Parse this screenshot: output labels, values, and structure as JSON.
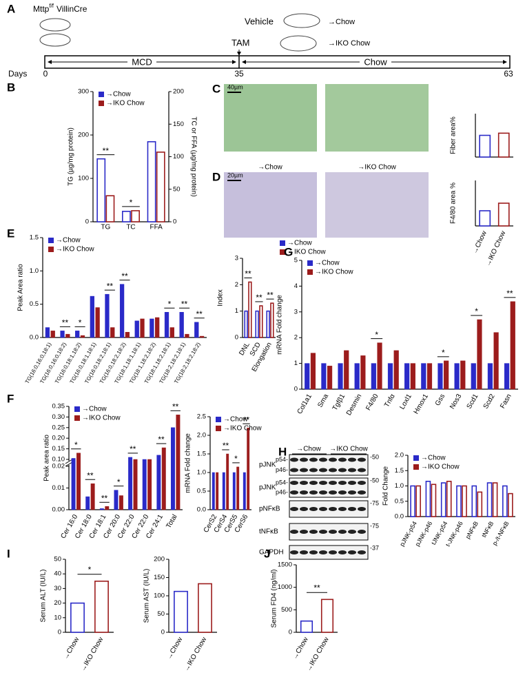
{
  "timeline": {
    "panel": "A",
    "strain": [
      "Mttp",
      "f/f",
      "VillinCre"
    ],
    "groups": [
      {
        "treatment": "Vehicle",
        "outcome": "→Chow"
      },
      {
        "treatment": "TAM",
        "outcome": "→IKO Chow"
      }
    ],
    "phases": [
      "MCD",
      "Chow"
    ],
    "days_label": "Days",
    "days": [
      "0",
      "35",
      "63"
    ]
  },
  "histology": {
    "panels": [
      "C",
      "D"
    ],
    "scale_bars": [
      "40µm",
      "20µm"
    ],
    "columns": [
      "→Chow",
      "→IKO Chow"
    ]
  },
  "blot": {
    "panel": "H",
    "groups": [
      "→Chow",
      "→IKO Chow"
    ],
    "rows": [
      {
        "label": "pJNK",
        "bands": [
          "p54-",
          "p46-"
        ],
        "marker": "-50"
      },
      {
        "label": "pJNK",
        "bands": [
          "p54-",
          "p46-"
        ],
        "marker": "-50"
      },
      {
        "label": "pNFκB",
        "marker": "-75"
      },
      {
        "label": "tNFκB",
        "marker": "-75"
      },
      {
        "label": "GAPDH",
        "marker": "-37"
      }
    ]
  },
  "chart_data": [
    {
      "type": "bar",
      "panel": "B",
      "ylabel": "TG (µg/mg protein)",
      "y2label": "TC or FFA (µg/mg protein)",
      "categories": [
        "TG",
        "TC",
        "FFA"
      ],
      "value_axis": [
        "y",
        "y2",
        "y2"
      ],
      "series": [
        {
          "name": "→Chow",
          "color": "#2a2ac8",
          "values": [
            145,
            16,
            123
          ]
        },
        {
          "name": "→IKO Chow",
          "color": "#9c1c1c",
          "values": [
            60,
            17,
            107
          ]
        }
      ],
      "ylim": [
        0,
        300
      ],
      "yticks": [
        0,
        100,
        200,
        300
      ],
      "y2lim": [
        0,
        200
      ],
      "y2ticks": [
        0,
        50,
        100,
        150,
        200
      ],
      "significance": [
        "**",
        "*",
        null
      ],
      "bar_style": "outline",
      "legend": "top-left"
    },
    {
      "type": "bar",
      "ylabel": "Fiber area%",
      "values": [
        2.0,
        2.2
      ],
      "colors": [
        "#2a2ac8",
        "#9c1c1c"
      ],
      "ylim": [
        0,
        4
      ],
      "bar_style": "outline"
    },
    {
      "type": "bar",
      "ylabel": "F4/80 area %",
      "categories": [
        "→Chow",
        "→IKO Chow"
      ],
      "values": [
        1.0,
        1.5
      ],
      "colors": [
        "#2a2ac8",
        "#9c1c1c"
      ],
      "ylim": [
        0,
        3
      ],
      "bar_style": "outline"
    },
    {
      "type": "bar",
      "panel": "E",
      "ylabel": "Peak Area ratio",
      "categories": [
        "TG(16:0,16:0,18:1)",
        "TG(16:0,16:0,18:2)",
        "TG(16:0,18:1,18:2)",
        "TG(16:0,18:1,18:1)",
        "TG(16:0,18:2,18:1)",
        "TG(16:0,18:2,18:2)",
        "TG(18:1,18:1,18:1)",
        "TG(18:1,18:2,18:2)",
        "TG(18:1,18:2,18:1)",
        "TG(18:2,18:2,18:1)",
        "TG(18:2,18:2,18:2)"
      ],
      "series": [
        {
          "name": "→Chow",
          "color": "#2a2ac8",
          "values": [
            0.15,
            0.1,
            0.1,
            0.62,
            0.65,
            0.8,
            0.25,
            0.28,
            0.38,
            0.38,
            0.23
          ]
        },
        {
          "name": "→IKO Chow",
          "color": "#9c1c1c",
          "values": [
            0.1,
            0.05,
            0.03,
            0.45,
            0.15,
            0.08,
            0.28,
            0.3,
            0.15,
            0.05,
            0.02
          ]
        }
      ],
      "ylim": [
        0,
        1.5
      ],
      "yticks": [
        {
          "value": 0,
          "label": "0.0"
        },
        0.5,
        {
          "value": 1,
          "label": "1.0"
        },
        1.5
      ],
      "significance": [
        null,
        "**",
        "*",
        null,
        "**",
        "**",
        null,
        null,
        "*",
        "**",
        "**"
      ],
      "bar_style": "filled",
      "legend": "top-left"
    },
    {
      "type": "bar",
      "ylabel": "Index",
      "categories": [
        "DNL",
        "SCD",
        "Elongation"
      ],
      "series": [
        {
          "name": "→Chow",
          "color": "#2a2ac8",
          "values": [
            1,
            1,
            1
          ]
        },
        {
          "name": "→IKO Chow",
          "color": "#9c1c1c",
          "values": [
            2.1,
            1.2,
            1.3
          ]
        }
      ],
      "ylim": [
        0,
        3
      ],
      "yticks": [
        0,
        1,
        2,
        3
      ],
      "significance": [
        "**",
        "**",
        "**"
      ],
      "bar_style": "outline",
      "legend": "top-right"
    },
    {
      "type": "bar",
      "panel": "G",
      "ylabel": "mRNA Fold change",
      "categories": [
        "Col1a1",
        "Sma",
        "Tgfβ1",
        "Desmin",
        "F4/80",
        "Tnfα",
        "Loxl1",
        "Hmox1",
        "Gss",
        "Nos3",
        "Scd1",
        "Scd2",
        "Fasn"
      ],
      "series": [
        {
          "name": "→Chow",
          "color": "#2a2ac8",
          "values": [
            1,
            1,
            1,
            1,
            1,
            1,
            1,
            1,
            1,
            1,
            1,
            1,
            1
          ]
        },
        {
          "name": "→IKO Chow",
          "color": "#9c1c1c",
          "values": [
            1.4,
            0.9,
            1.5,
            1.3,
            1.8,
            1.5,
            1.0,
            1.0,
            1.1,
            1.1,
            2.7,
            2.2,
            3.4
          ]
        }
      ],
      "ylim": [
        0,
        5
      ],
      "yticks": [
        0,
        1,
        2,
        3,
        4,
        5
      ],
      "significance": [
        null,
        null,
        null,
        null,
        "*",
        null,
        null,
        null,
        "*",
        null,
        "*",
        null,
        "**"
      ],
      "bar_style": "filled",
      "legend": "top-left"
    },
    {
      "type": "bar",
      "panel": "F",
      "ylabel": "Peak area ratio",
      "categories": [
        "Cer 16:0",
        "Cer 18:0",
        "Cer 18:1",
        "Cer 20:0",
        "Cer 22:0",
        "Cer 22:0",
        "Cer 24:1",
        "Total"
      ],
      "series": [
        {
          "name": "→Chow",
          "color": "#2a2ac8",
          "values": [
            0.105,
            0.006,
            0.0005,
            0.009,
            0.11,
            0.1,
            0.12,
            0.25
          ]
        },
        {
          "name": "→IKO Chow",
          "color": "#9c1c1c",
          "values": [
            0.13,
            0.012,
            0.0015,
            0.0065,
            0.1,
            0.1,
            0.155,
            0.31
          ]
        }
      ],
      "ylim": [
        0,
        0.35
      ],
      "ybreak": [
        0.02,
        0.1
      ],
      "yticks": [
        {
          "value": 0,
          "label": "0.00"
        },
        0.01,
        0.02,
        {
          "value": 0.1,
          "label": "0.10"
        },
        0.15,
        {
          "value": 0.2,
          "label": "0.20"
        },
        0.25,
        {
          "value": 0.3,
          "label": "0.30"
        },
        0.35
      ],
      "significance": [
        "*",
        "**",
        "**",
        "*",
        "**",
        null,
        "**",
        "**"
      ],
      "bar_style": "filled",
      "legend": "top-left"
    },
    {
      "type": "bar",
      "ylabel": "mRNA Fold change",
      "categories": [
        "CerS2",
        "CerS4",
        "CerS5",
        "CerS6"
      ],
      "series": [
        {
          "name": "→Chow",
          "color": "#2a2ac8",
          "values": [
            1,
            1,
            1,
            1
          ]
        },
        {
          "name": "→IKO Chow",
          "color": "#9c1c1c",
          "values": [
            1.0,
            1.5,
            1.15,
            2.2
          ]
        }
      ],
      "ylim": [
        0,
        2.5
      ],
      "yticks": [
        {
          "value": 0,
          "label": "0.0"
        },
        0.5,
        {
          "value": 1,
          "label": "1.0"
        },
        1.5,
        {
          "value": 2,
          "label": "2.0"
        },
        2.5
      ],
      "significance": [
        null,
        "**",
        "*",
        "**"
      ],
      "bar_style": "filled",
      "legend": "top-left"
    },
    {
      "type": "bar",
      "ylabel": "Fold Change",
      "categories": [
        "pJNK-p54",
        "pJNK-p46",
        "tJNK-p54",
        "t-JNK-p46",
        "pNFκB",
        "tNFκB",
        "p-/t-NFκB"
      ],
      "series": [
        {
          "name": "→Chow",
          "color": "#2a2ac8",
          "values": [
            1,
            1.15,
            1.1,
            1.0,
            1.0,
            1.1,
            1.0
          ]
        },
        {
          "name": "→IKO Chow",
          "color": "#9c1c1c",
          "values": [
            1.0,
            1.05,
            1.15,
            1.0,
            0.8,
            1.1,
            0.75
          ]
        }
      ],
      "ylim": [
        0,
        2
      ],
      "yticks": [
        {
          "value": 0,
          "label": "0.0"
        },
        0.5,
        {
          "value": 1,
          "label": "1.0"
        },
        1.5,
        {
          "value": 2,
          "label": "2.0"
        }
      ],
      "bar_style": "outline",
      "legend": "top-left"
    },
    {
      "type": "bar",
      "panel": "I",
      "ylabel": "Serum ALT (IU/L)",
      "categories": [
        "→Chow",
        "→IKO Chow"
      ],
      "values": [
        20,
        35
      ],
      "colors": [
        "#2a2ac8",
        "#9c1c1c"
      ],
      "ylim": [
        0,
        50
      ],
      "yticks": [
        0,
        10,
        20,
        30,
        40,
        50
      ],
      "significance": "*",
      "bar_style": "outline"
    },
    {
      "type": "bar",
      "ylabel": "Serum AST (IU/L)",
      "categories": [
        "→Chow",
        "→IKO Chow"
      ],
      "values": [
        112,
        133
      ],
      "colors": [
        "#2a2ac8",
        "#9c1c1c"
      ],
      "ylim": [
        0,
        200
      ],
      "yticks": [
        0,
        50,
        100,
        150,
        200
      ],
      "bar_style": "outline"
    },
    {
      "type": "bar",
      "panel": "J",
      "ylabel": "Serum FD4 (ng/ml)",
      "categories": [
        "→Chow",
        "→IKO Chow"
      ],
      "values": [
        250,
        730
      ],
      "colors": [
        "#2a2ac8",
        "#9c1c1c"
      ],
      "ylim": [
        0,
        1500
      ],
      "yticks": [
        0,
        500,
        1000,
        1500
      ],
      "significance": "**",
      "bar_style": "outline"
    }
  ]
}
